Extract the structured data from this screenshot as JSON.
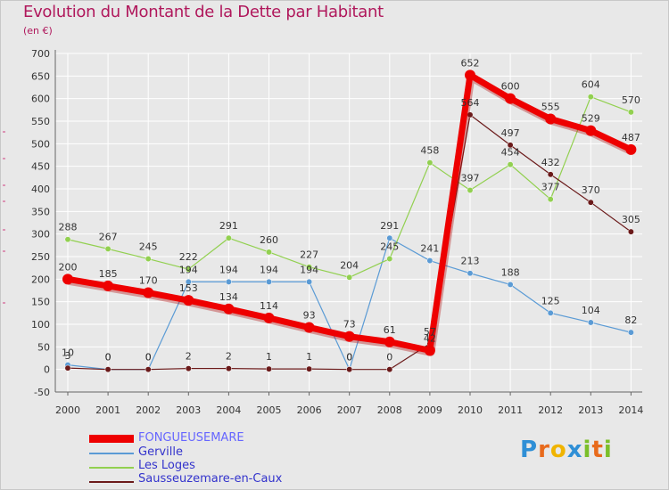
{
  "header": {
    "title": "Evolution du Montant de la Dette par Habitant",
    "subtitle": "(en €)"
  },
  "logo": {
    "text": "Proxiti",
    "letters": [
      "P",
      "r",
      "o",
      "x",
      "i",
      "t",
      "i"
    ],
    "colors": [
      "#2f8fd6",
      "#e86a1c",
      "#f0b400",
      "#2f8fd6",
      "#7bbf2a",
      "#e86a1c",
      "#7bbf2a"
    ]
  },
  "colors": {
    "title": "#b0185c",
    "fongueusemare": "#ee0000",
    "gerville": "#5b9bd5",
    "les_loges": "#92d050",
    "sausseuzemare": "#6b1a1a",
    "legend_fongueusemare": "#6666ff",
    "legend_others": "#3333cc"
  },
  "chart_data": {
    "type": "line",
    "title": "Evolution du Montant de la Dette par Habitant",
    "subtitle": "(en €)",
    "xlabel": "",
    "ylabel": "",
    "x": [
      "2000",
      "2001",
      "2002",
      "2003",
      "2004",
      "2005",
      "2006",
      "2007",
      "2008",
      "2009",
      "2010",
      "2011",
      "2012",
      "2013",
      "2014"
    ],
    "ylim": [
      -50,
      700
    ],
    "yticks": [
      "-50",
      "0",
      "50",
      "100",
      "150",
      "200",
      "250",
      "300",
      "350",
      "400",
      "450",
      "500",
      "550",
      "600",
      "650",
      "700"
    ],
    "grid": true,
    "legend_position": "bottom-left",
    "series": [
      {
        "name": "Gerville",
        "color": "#5b9bd5",
        "values": [
          10,
          0,
          0,
          194,
          194,
          194,
          194,
          0,
          291,
          241,
          213,
          188,
          125,
          104,
          82
        ],
        "labels": [
          "10",
          "0",
          "0",
          "194",
          "194",
          "194",
          "194",
          "0",
          "291",
          "241",
          "213",
          "188",
          "125",
          "104",
          "82"
        ]
      },
      {
        "name": "Les Loges",
        "color": "#92d050",
        "values": [
          288,
          267,
          245,
          222,
          291,
          260,
          227,
          204,
          245,
          458,
          397,
          454,
          377,
          604,
          570
        ],
        "labels": [
          "288",
          "267",
          "245",
          "222",
          "291",
          "260",
          "227",
          "204",
          "245",
          "458",
          "397",
          "454",
          "377",
          "604",
          "570"
        ]
      },
      {
        "name": "Sausseuzemare-en-Caux",
        "color": "#6b1a1a",
        "values": [
          3,
          0,
          0,
          2,
          2,
          1,
          1,
          0,
          0,
          57,
          564,
          497,
          432,
          370,
          305
        ],
        "labels": [
          "3",
          "0",
          "0",
          "2",
          "2",
          "1",
          "1",
          "0",
          "0",
          "57",
          "564",
          "497",
          "432",
          "370",
          "305"
        ]
      },
      {
        "name": "FONGUEUSEMARE",
        "color": "#ee0000",
        "values": [
          200,
          185,
          170,
          153,
          134,
          114,
          93,
          73,
          61,
          42,
          652,
          600,
          555,
          529,
          487
        ],
        "labels": [
          "200",
          "185",
          "170",
          "153",
          "134",
          "114",
          "93",
          "73",
          "61",
          "42",
          "652",
          "600",
          "555",
          "529",
          "487"
        ]
      }
    ]
  }
}
